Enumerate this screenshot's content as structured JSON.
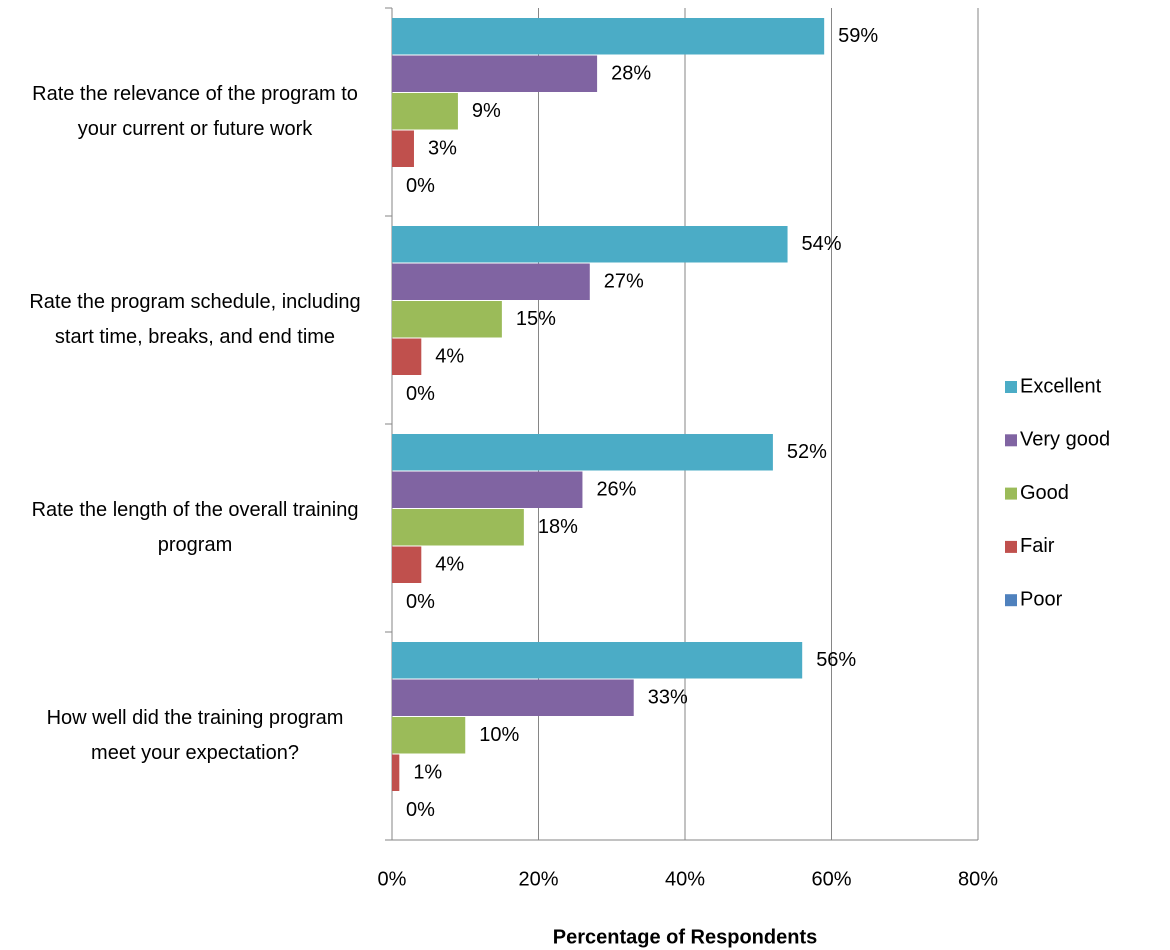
{
  "chart_data": {
    "type": "barh",
    "categories": [
      "Rate the relevance of the program to your current or future work",
      "Rate the program schedule, including start time, breaks, and end time",
      "Rate the length of the overall training program",
      "How well did the training program meet your expectation?"
    ],
    "series": [
      {
        "name": "Excellent",
        "color": "#4bacc6",
        "values": [
          59,
          54,
          52,
          56
        ],
        "value_labels": [
          "59%",
          "54%",
          "52%",
          "56%"
        ]
      },
      {
        "name": "Very good",
        "color": "#8064a2",
        "values": [
          28,
          27,
          26,
          33
        ],
        "value_labels": [
          "28%",
          "27%",
          "26%",
          "33%"
        ]
      },
      {
        "name": "Good",
        "color": "#9bbb59",
        "values": [
          9,
          15,
          18,
          10
        ],
        "value_labels": [
          "9%",
          "15%",
          "18%",
          "10%"
        ]
      },
      {
        "name": "Fair",
        "color": "#c0504d",
        "values": [
          3,
          4,
          4,
          1
        ],
        "value_labels": [
          "3%",
          "4%",
          "4%",
          "1%"
        ]
      },
      {
        "name": "Poor",
        "color": "#4f81bd",
        "values": [
          0,
          0,
          0,
          0
        ],
        "value_labels": [
          "0%",
          "0%",
          "0%",
          "0%"
        ]
      }
    ],
    "xlabel": "Percentage of Respondents",
    "xlim": [
      0,
      80
    ],
    "xticks": [
      {
        "value": 0,
        "label": "0%"
      },
      {
        "value": 20,
        "label": "20%"
      },
      {
        "value": 40,
        "label": "40%"
      },
      {
        "value": 60,
        "label": "60%"
      },
      {
        "value": 80,
        "label": "80%"
      }
    ],
    "grid": true,
    "legend": "right"
  }
}
